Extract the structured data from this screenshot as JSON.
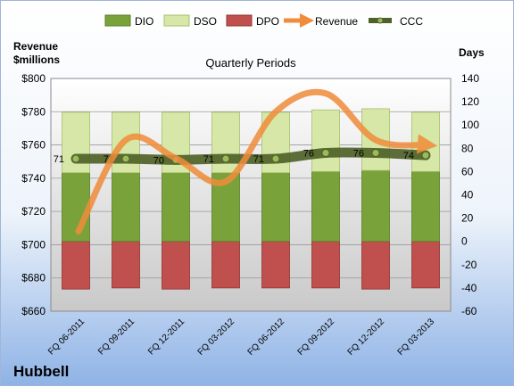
{
  "company": "Hubbell",
  "chart_data": {
    "type": "bar",
    "title": "Quarterly Periods",
    "left_axis_label_line1": "Revenue",
    "left_axis_label_line2": "$millions",
    "right_axis_label": "Days",
    "categories": [
      "FQ 06-2011",
      "FQ 09-2011",
      "FQ 12-2011",
      "FQ 03-2012",
      "FQ 06-2012",
      "FQ 09-2012",
      "FQ 12-2012",
      "FQ 03-2013"
    ],
    "series": [
      {
        "name": "DIO",
        "type": "stacked-bar",
        "axis": "right",
        "color": "#7aa23a",
        "values": [
          59,
          59,
          59,
          59,
          59,
          60,
          61,
          60
        ]
      },
      {
        "name": "DSO",
        "type": "stacked-bar",
        "axis": "right",
        "color": "#d6e7a7",
        "values": [
          52,
          52,
          52,
          52,
          52,
          53,
          53,
          51
        ]
      },
      {
        "name": "DPO",
        "type": "stacked-bar",
        "axis": "right",
        "color": "#c0504d",
        "values": [
          -41,
          -40,
          -41,
          -40,
          -40,
          -40,
          -41,
          -40
        ]
      },
      {
        "name": "Revenue",
        "type": "line",
        "axis": "left",
        "color": "#f08c3a",
        "values": [
          708,
          763,
          752,
          738,
          780,
          791,
          763,
          760
        ]
      },
      {
        "name": "CCC",
        "type": "line",
        "axis": "right",
        "color": "#4f6228",
        "values": [
          71,
          71,
          70,
          71,
          71,
          76,
          76,
          74
        ]
      }
    ],
    "ccc_labels": [
      "71",
      "71",
      "70",
      "71",
      "71",
      "76",
      "76",
      "74"
    ],
    "y_left": {
      "min": 660,
      "max": 800,
      "step": 20,
      "ticks": [
        "$800",
        "$780",
        "$760",
        "$740",
        "$720",
        "$700",
        "$680",
        "$660"
      ]
    },
    "y_right": {
      "min": -60,
      "max": 140,
      "step": 20,
      "ticks": [
        "140",
        "120",
        "100",
        "80",
        "60",
        "40",
        "20",
        "0",
        "-20",
        "-40",
        "-60"
      ]
    },
    "legend": [
      "DIO",
      "DSO",
      "DPO",
      "Revenue",
      "CCC"
    ],
    "legend_position": "top"
  }
}
